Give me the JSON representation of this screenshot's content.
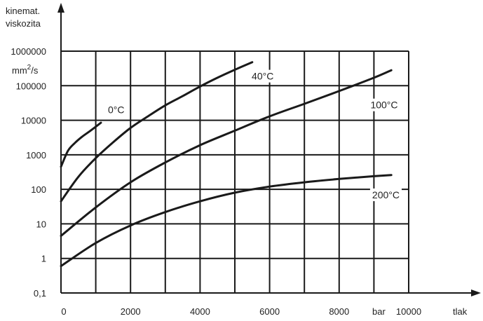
{
  "chart_data": {
    "type": "line",
    "title": "",
    "ylabel_line1": "kinemat.",
    "ylabel_line2": "viskozita",
    "yunit_base": "mm",
    "yunit_exp": "2",
    "yunit_tail": "/s",
    "xlabel": "tlak",
    "xunit": "bar",
    "yscale": "log",
    "xlim": [
      0,
      10000
    ],
    "ylim": [
      0.1,
      1000000
    ],
    "grid": true,
    "x_tick_labels": [
      "0",
      "2000",
      "4000",
      "6000",
      "8000",
      "10000"
    ],
    "y_tick_labels": [
      "0,1",
      "1",
      "10",
      "100",
      "1000",
      "10000",
      "100000",
      "1000000"
    ],
    "series": [
      {
        "name": "0°C",
        "x": [
          0,
          200,
          400,
          600,
          800,
          1000,
          1150
        ],
        "y": [
          450,
          1300,
          2200,
          3300,
          4600,
          6500,
          8500
        ]
      },
      {
        "name": "40°C",
        "x": [
          0,
          500,
          1000,
          1500,
          2000,
          2500,
          3000,
          3500,
          4000,
          4500,
          5000,
          5500
        ],
        "y": [
          45,
          230,
          800,
          2300,
          6000,
          13000,
          27000,
          50000,
          95000,
          170000,
          290000,
          480000
        ]
      },
      {
        "name": "100°C",
        "x": [
          0,
          1000,
          2000,
          3000,
          4000,
          5000,
          6000,
          7000,
          8000,
          9000,
          9500
        ],
        "y": [
          4.5,
          30,
          160,
          600,
          1900,
          5000,
          13000,
          30000,
          70000,
          170000,
          280000
        ]
      },
      {
        "name": "200°C",
        "x": [
          0,
          1000,
          2000,
          3000,
          4000,
          5000,
          6000,
          7000,
          8000,
          9000,
          9500
        ],
        "y": [
          0.6,
          2.8,
          9,
          22,
          45,
          80,
          120,
          160,
          200,
          240,
          260
        ]
      }
    ]
  }
}
